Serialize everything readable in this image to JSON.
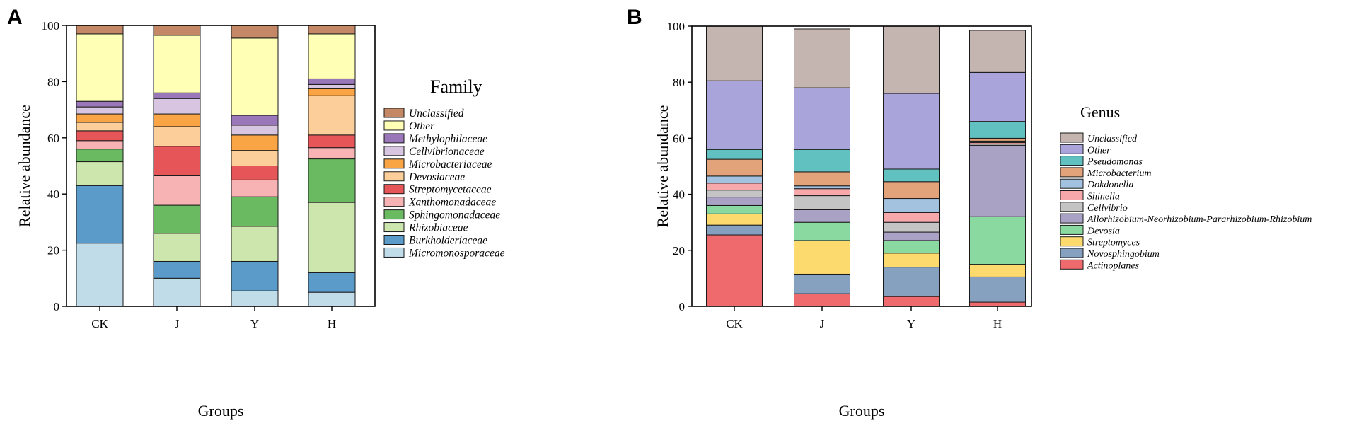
{
  "chart_data": [
    {
      "panel": "A",
      "type": "bar",
      "stacked": true,
      "title": "",
      "xlabel": "Groups",
      "ylabel": "Relative abundance",
      "ylim": [
        0,
        100
      ],
      "yticks": [
        0,
        20,
        40,
        60,
        80,
        100
      ],
      "categories": [
        "CK",
        "J",
        "Y",
        "H"
      ],
      "legend_title": "Family",
      "series": [
        {
          "name": "Micromonosporaceae",
          "color": "#bfdce8",
          "values": [
            22.5,
            10,
            5.5,
            5
          ]
        },
        {
          "name": "Burkholderiaceae",
          "color": "#5b9bc9",
          "values": [
            20.5,
            6,
            10.5,
            7
          ]
        },
        {
          "name": "Rhizobiaceae",
          "color": "#cde6ad",
          "values": [
            8.5,
            10,
            12.5,
            25
          ]
        },
        {
          "name": "Sphingomonadaceae",
          "color": "#6aba62",
          "values": [
            4.5,
            10,
            10.5,
            15.5
          ]
        },
        {
          "name": "Xanthomonadaceae",
          "color": "#f7b2b4",
          "values": [
            3,
            10.5,
            6,
            4
          ]
        },
        {
          "name": "Streptomycetaceae",
          "color": "#e65558",
          "values": [
            3.5,
            10.5,
            5,
            4.5
          ]
        },
        {
          "name": "Devosiaceae",
          "color": "#fccf9a",
          "values": [
            3,
            7,
            5.5,
            14
          ]
        },
        {
          "name": "Microbacteriaceae",
          "color": "#f9a545",
          "values": [
            3,
            4.5,
            5.5,
            2.5
          ]
        },
        {
          "name": "Cellvibrionaceae",
          "color": "#d8c5e2",
          "values": [
            2.5,
            5.5,
            3.5,
            1.5
          ]
        },
        {
          "name": "Methylophilaceae",
          "color": "#9a77b8",
          "values": [
            2,
            2,
            3.5,
            2
          ]
        },
        {
          "name": "Other",
          "color": "#ffffb6",
          "values": [
            24,
            20.5,
            27.5,
            16
          ]
        },
        {
          "name": "Unclassified",
          "color": "#c48867",
          "values": [
            3,
            3.5,
            4.5,
            3
          ]
        }
      ]
    },
    {
      "panel": "B",
      "type": "bar",
      "stacked": true,
      "title": "",
      "xlabel": "Groups",
      "ylabel": "Relative abundance",
      "ylim": [
        0,
        100
      ],
      "yticks": [
        0,
        20,
        40,
        60,
        80,
        100
      ],
      "categories": [
        "CK",
        "J",
        "Y",
        "H"
      ],
      "legend_title": "Genus",
      "series": [
        {
          "name": "Actinoplanes",
          "color": "#ef6a6c",
          "values": [
            25.5,
            4.5,
            3.5,
            1.5
          ]
        },
        {
          "name": "Novosphingobium",
          "color": "#86a0c0",
          "values": [
            3.5,
            7,
            10.5,
            9
          ]
        },
        {
          "name": "Streptomyces",
          "color": "#fdda6e",
          "values": [
            4,
            12,
            5,
            4.5
          ]
        },
        {
          "name": "Devosia",
          "color": "#8ad9a1",
          "values": [
            3,
            6.5,
            4.5,
            17
          ]
        },
        {
          "name": "Allorhizobium-Neorhizobium-Pararhizobium-Rhizobium",
          "color": "#aaa2c4",
          "values": [
            3,
            4.5,
            3,
            25.5
          ]
        },
        {
          "name": "Cellvibrio",
          "color": "#c4c4c4",
          "values": [
            2.5,
            5,
            3.5,
            0.5
          ]
        },
        {
          "name": "Shinella",
          "color": "#f6a8ab",
          "values": [
            2.5,
            2.5,
            3.5,
            0.5
          ]
        },
        {
          "name": "Dokdonella",
          "color": "#a3c2e0",
          "values": [
            2.5,
            1,
            5,
            0.5
          ]
        },
        {
          "name": "Microbacterium",
          "color": "#e3a37a",
          "values": [
            6,
            5,
            6,
            1
          ]
        },
        {
          "name": "Pseudomonas",
          "color": "#61c1c0",
          "values": [
            3.5,
            8,
            4.5,
            6
          ]
        },
        {
          "name": "Other",
          "color": "#a9a4da",
          "values": [
            24.5,
            22,
            27,
            17.5
          ]
        },
        {
          "name": "Unclassified",
          "color": "#c4b5b0",
          "values": [
            19.5,
            21,
            24,
            15
          ]
        }
      ]
    }
  ]
}
